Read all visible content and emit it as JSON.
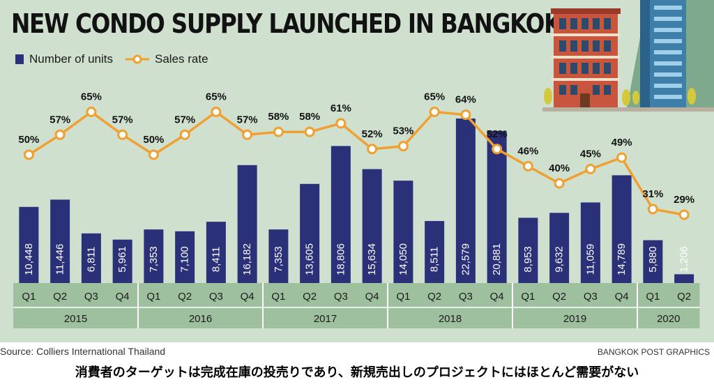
{
  "title": "NEW CONDO SUPPLY LAUNCHED IN BANGKOK",
  "legend": {
    "units": "Number of units",
    "rate": "Sales rate"
  },
  "colors": {
    "bar": "#2a3179",
    "line": "#f0a030",
    "band": "#9ec09e",
    "panel": "#cfe0cf"
  },
  "source": "Source: Colliers International Thailand",
  "credit": "BANGKOK POST GRAPHICS",
  "caption": "消費者のターゲットは完成在庫の投売りであり、新規売出しのプロジェクトにはほとんど需要がない",
  "chart_data": {
    "type": "bar",
    "quarters": [
      "Q1",
      "Q2",
      "Q3",
      "Q4",
      "Q1",
      "Q2",
      "Q3",
      "Q4",
      "Q1",
      "Q2",
      "Q3",
      "Q4",
      "Q1",
      "Q2",
      "Q3",
      "Q4",
      "Q1",
      "Q2",
      "Q3",
      "Q4",
      "Q1",
      "Q2"
    ],
    "years": [
      {
        "label": "2015",
        "count": 4
      },
      {
        "label": "2016",
        "count": 4
      },
      {
        "label": "2017",
        "count": 4
      },
      {
        "label": "2018",
        "count": 4
      },
      {
        "label": "2019",
        "count": 4
      },
      {
        "label": "2020",
        "count": 2
      }
    ],
    "series": [
      {
        "name": "Number of units",
        "type": "bar",
        "values": [
          10448,
          11446,
          6811,
          5961,
          7353,
          7100,
          8411,
          16182,
          7353,
          13605,
          18806,
          15634,
          14050,
          8511,
          22579,
          20881,
          8953,
          9632,
          11059,
          14789,
          5880,
          1206
        ],
        "labels": [
          "10,448",
          "11,446",
          "6,811",
          "5,961",
          "7,353",
          "7,100",
          "8,411",
          "16,182",
          "7,353",
          "13,605",
          "18,806",
          "15,634",
          "14,050",
          "8,511",
          "22,579",
          "20,881",
          "8,953",
          "9,632",
          "11,059",
          "14,789",
          "5,880",
          "1,206"
        ]
      },
      {
        "name": "Sales rate",
        "type": "line",
        "values": [
          50,
          57,
          65,
          57,
          50,
          57,
          65,
          57,
          58,
          58,
          61,
          52,
          53,
          65,
          64,
          52,
          46,
          40,
          45,
          49,
          31,
          29
        ],
        "labels": [
          "50%",
          "57%",
          "65%",
          "57%",
          "50%",
          "57%",
          "65%",
          "57%",
          "58%",
          "58%",
          "61%",
          "52%",
          "53%",
          "65%",
          "64%",
          "52%",
          "46%",
          "40%",
          "45%",
          "49%",
          "31%",
          "29%"
        ]
      }
    ]
  }
}
